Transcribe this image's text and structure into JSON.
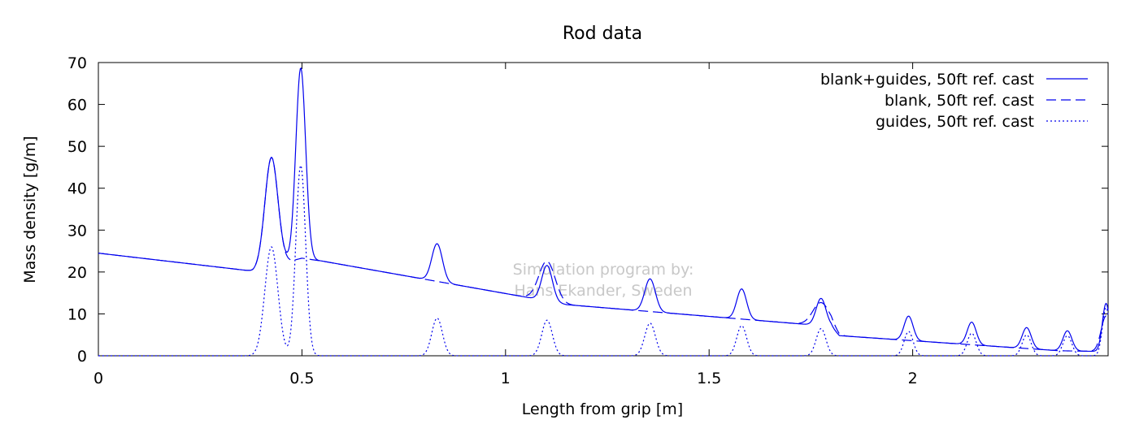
{
  "chart_data": {
    "type": "line",
    "title": "Rod data",
    "xlabel": "Length from grip [m]",
    "ylabel": "Mass density [g/m]",
    "xlim": [
      0,
      2.48
    ],
    "ylim": [
      0,
      70
    ],
    "x_ticks": [
      "0",
      "0.5",
      "1",
      "1.5",
      "2"
    ],
    "y_ticks": [
      "0",
      "10",
      "20",
      "30",
      "40",
      "50",
      "60",
      "70"
    ],
    "grid": false,
    "legend_position": "top-right",
    "watermark": [
      "Simulation program by:",
      "Hans Ekander, Sweden"
    ],
    "line_color": "#0000ee",
    "base_blank": [
      [
        0,
        24.5
      ],
      [
        0.38,
        20.2
      ],
      [
        0.5,
        23.3
      ],
      [
        0.55,
        22.6
      ],
      [
        1.05,
        14
      ],
      [
        1.15,
        12.2
      ],
      [
        1.8,
        7
      ],
      [
        1.82,
        4.8
      ],
      [
        2.36,
        1.2
      ],
      [
        2.48,
        1.0
      ]
    ],
    "guides_peaks": [
      {
        "x": 0.425,
        "height": 26,
        "width": 0.016
      },
      {
        "x": 0.497,
        "height": 45.5,
        "width": 0.012
      },
      {
        "x": 0.832,
        "height": 9,
        "width": 0.013
      },
      {
        "x": 1.102,
        "height": 8.5,
        "width": 0.013
      },
      {
        "x": 1.355,
        "height": 7.8,
        "width": 0.013
      },
      {
        "x": 1.58,
        "height": 7.2,
        "width": 0.012
      },
      {
        "x": 1.775,
        "height": 6.5,
        "width": 0.012
      },
      {
        "x": 1.99,
        "height": 5.8,
        "width": 0.011
      },
      {
        "x": 2.145,
        "height": 5.4,
        "width": 0.011
      },
      {
        "x": 2.28,
        "height": 5.0,
        "width": 0.011
      },
      {
        "x": 2.38,
        "height": 4.8,
        "width": 0.011
      },
      {
        "x": 2.475,
        "height": 11.5,
        "width": 0.009
      }
    ],
    "blank_bumps": [
      {
        "x": 0.425,
        "height": 26,
        "width": 0.016
      },
      {
        "x": 1.102,
        "height": 9.5,
        "width": 0.02
      },
      {
        "x": 1.775,
        "height": 5.5,
        "width": 0.02
      },
      {
        "x": 2.475,
        "height": 8.5,
        "width": 0.012
      }
    ],
    "series": [
      {
        "name": "blank+guides, 50ft ref. cast",
        "style": "solid"
      },
      {
        "name": "blank, 50ft ref. cast",
        "style": "dashed"
      },
      {
        "name": "guides, 50ft ref. cast",
        "style": "dotted"
      }
    ]
  }
}
